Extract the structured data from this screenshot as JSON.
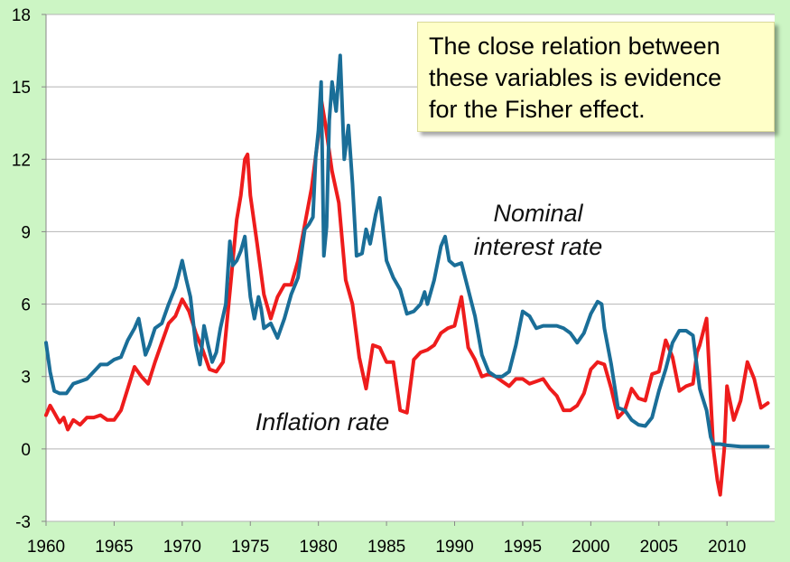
{
  "chart_data": {
    "type": "line",
    "title": "",
    "xlabel": "",
    "ylabel": "",
    "xlim": [
      1960,
      2013.5
    ],
    "ylim": [
      -3,
      18
    ],
    "y_ticks": [
      18,
      15,
      12,
      9,
      6,
      3,
      0,
      -3
    ],
    "x_ticks": [
      1960,
      1965,
      1970,
      1975,
      1980,
      1985,
      1990,
      1995,
      2000,
      2005,
      2010
    ],
    "grid": "horizontal",
    "background": "#ccf5c4",
    "plot_background": "#ffffff",
    "annotation": [
      "The close relation between",
      "these variables is evidence",
      "for the Fisher effect."
    ],
    "series": [
      {
        "label_lines": [
          "Nominal",
          "interest rate"
        ],
        "color": "#1a6e98",
        "points": [
          [
            1960.0,
            4.4
          ],
          [
            1960.3,
            3.2
          ],
          [
            1960.6,
            2.4
          ],
          [
            1961.0,
            2.3
          ],
          [
            1961.5,
            2.3
          ],
          [
            1962.0,
            2.7
          ],
          [
            1962.5,
            2.8
          ],
          [
            1963.0,
            2.9
          ],
          [
            1963.5,
            3.2
          ],
          [
            1964.0,
            3.5
          ],
          [
            1964.5,
            3.5
          ],
          [
            1965.0,
            3.7
          ],
          [
            1965.5,
            3.8
          ],
          [
            1966.0,
            4.5
          ],
          [
            1966.5,
            5.0
          ],
          [
            1966.8,
            5.4
          ],
          [
            1967.0,
            4.8
          ],
          [
            1967.3,
            3.9
          ],
          [
            1967.6,
            4.3
          ],
          [
            1968.0,
            5.0
          ],
          [
            1968.5,
            5.2
          ],
          [
            1969.0,
            6.0
          ],
          [
            1969.5,
            6.7
          ],
          [
            1970.0,
            7.8
          ],
          [
            1970.3,
            7.0
          ],
          [
            1970.6,
            6.3
          ],
          [
            1971.0,
            4.3
          ],
          [
            1971.3,
            3.5
          ],
          [
            1971.6,
            5.1
          ],
          [
            1971.9,
            4.3
          ],
          [
            1972.2,
            3.6
          ],
          [
            1972.5,
            4.0
          ],
          [
            1972.8,
            5.0
          ],
          [
            1973.2,
            6.0
          ],
          [
            1973.5,
            8.6
          ],
          [
            1973.7,
            7.6
          ],
          [
            1974.0,
            7.8
          ],
          [
            1974.3,
            8.2
          ],
          [
            1974.6,
            8.8
          ],
          [
            1974.8,
            7.5
          ],
          [
            1975.0,
            6.3
          ],
          [
            1975.3,
            5.4
          ],
          [
            1975.6,
            6.3
          ],
          [
            1975.8,
            5.8
          ],
          [
            1976.0,
            5.0
          ],
          [
            1976.5,
            5.2
          ],
          [
            1977.0,
            4.6
          ],
          [
            1977.5,
            5.4
          ],
          [
            1978.0,
            6.4
          ],
          [
            1978.5,
            7.1
          ],
          [
            1979.0,
            9.1
          ],
          [
            1979.3,
            9.3
          ],
          [
            1979.6,
            9.6
          ],
          [
            1979.8,
            12.1
          ],
          [
            1980.0,
            13.2
          ],
          [
            1980.2,
            15.2
          ],
          [
            1980.4,
            8.0
          ],
          [
            1980.6,
            9.2
          ],
          [
            1980.8,
            13.6
          ],
          [
            1981.0,
            15.2
          ],
          [
            1981.3,
            14.0
          ],
          [
            1981.6,
            16.3
          ],
          [
            1981.9,
            12.0
          ],
          [
            1982.2,
            13.4
          ],
          [
            1982.5,
            11.0
          ],
          [
            1982.8,
            8.0
          ],
          [
            1983.2,
            8.1
          ],
          [
            1983.5,
            9.1
          ],
          [
            1983.8,
            8.5
          ],
          [
            1984.2,
            9.7
          ],
          [
            1984.5,
            10.4
          ],
          [
            1984.8,
            8.8
          ],
          [
            1985.0,
            7.8
          ],
          [
            1985.5,
            7.1
          ],
          [
            1986.0,
            6.6
          ],
          [
            1986.5,
            5.6
          ],
          [
            1987.0,
            5.7
          ],
          [
            1987.5,
            6.0
          ],
          [
            1987.8,
            6.5
          ],
          [
            1988.0,
            6.0
          ],
          [
            1988.5,
            7.0
          ],
          [
            1989.0,
            8.4
          ],
          [
            1989.3,
            8.8
          ],
          [
            1989.6,
            7.8
          ],
          [
            1990.0,
            7.6
          ],
          [
            1990.5,
            7.7
          ],
          [
            1991.0,
            6.6
          ],
          [
            1991.5,
            5.5
          ],
          [
            1992.0,
            3.9
          ],
          [
            1992.5,
            3.2
          ],
          [
            1993.0,
            3.0
          ],
          [
            1993.5,
            3.0
          ],
          [
            1994.0,
            3.2
          ],
          [
            1994.5,
            4.3
          ],
          [
            1995.0,
            5.7
          ],
          [
            1995.5,
            5.5
          ],
          [
            1996.0,
            5.0
          ],
          [
            1996.5,
            5.1
          ],
          [
            1997.0,
            5.1
          ],
          [
            1997.5,
            5.1
          ],
          [
            1998.0,
            5.0
          ],
          [
            1998.5,
            4.8
          ],
          [
            1999.0,
            4.4
          ],
          [
            1999.5,
            4.8
          ],
          [
            2000.0,
            5.6
          ],
          [
            2000.5,
            6.1
          ],
          [
            2000.8,
            6.0
          ],
          [
            2001.0,
            5.0
          ],
          [
            2001.5,
            3.5
          ],
          [
            2002.0,
            1.7
          ],
          [
            2002.5,
            1.6
          ],
          [
            2003.0,
            1.2
          ],
          [
            2003.5,
            1.0
          ],
          [
            2004.0,
            0.95
          ],
          [
            2004.5,
            1.3
          ],
          [
            2005.0,
            2.4
          ],
          [
            2005.5,
            3.3
          ],
          [
            2006.0,
            4.4
          ],
          [
            2006.5,
            4.9
          ],
          [
            2007.0,
            4.9
          ],
          [
            2007.5,
            4.7
          ],
          [
            2008.0,
            2.5
          ],
          [
            2008.5,
            1.6
          ],
          [
            2008.8,
            0.5
          ],
          [
            2009.0,
            0.2
          ],
          [
            2009.5,
            0.2
          ],
          [
            2010.0,
            0.15
          ],
          [
            2011.0,
            0.1
          ],
          [
            2012.0,
            0.1
          ],
          [
            2013.0,
            0.1
          ]
        ]
      },
      {
        "label_lines": [
          "Inflation rate"
        ],
        "color": "#ee1c1c",
        "points": [
          [
            1960.0,
            1.4
          ],
          [
            1960.3,
            1.8
          ],
          [
            1960.6,
            1.5
          ],
          [
            1961.0,
            1.1
          ],
          [
            1961.3,
            1.3
          ],
          [
            1961.6,
            0.8
          ],
          [
            1962.0,
            1.2
          ],
          [
            1962.5,
            1.0
          ],
          [
            1963.0,
            1.3
          ],
          [
            1963.5,
            1.3
          ],
          [
            1964.0,
            1.4
          ],
          [
            1964.5,
            1.2
          ],
          [
            1965.0,
            1.2
          ],
          [
            1965.5,
            1.6
          ],
          [
            1966.0,
            2.5
          ],
          [
            1966.5,
            3.4
          ],
          [
            1967.0,
            3.0
          ],
          [
            1967.5,
            2.7
          ],
          [
            1968.0,
            3.6
          ],
          [
            1968.5,
            4.4
          ],
          [
            1969.0,
            5.2
          ],
          [
            1969.5,
            5.5
          ],
          [
            1970.0,
            6.2
          ],
          [
            1970.5,
            5.7
          ],
          [
            1971.0,
            4.8
          ],
          [
            1971.5,
            4.1
          ],
          [
            1972.0,
            3.3
          ],
          [
            1972.5,
            3.2
          ],
          [
            1973.0,
            3.6
          ],
          [
            1973.5,
            6.5
          ],
          [
            1974.0,
            9.5
          ],
          [
            1974.3,
            10.5
          ],
          [
            1974.6,
            12.0
          ],
          [
            1974.8,
            12.2
          ],
          [
            1975.0,
            10.5
          ],
          [
            1975.5,
            8.5
          ],
          [
            1976.0,
            6.4
          ],
          [
            1976.5,
            5.4
          ],
          [
            1977.0,
            6.3
          ],
          [
            1977.5,
            6.8
          ],
          [
            1978.0,
            6.8
          ],
          [
            1978.5,
            7.8
          ],
          [
            1979.0,
            9.3
          ],
          [
            1979.5,
            10.8
          ],
          [
            1980.0,
            13.0
          ],
          [
            1980.2,
            14.5
          ],
          [
            1980.5,
            13.5
          ],
          [
            1981.0,
            11.5
          ],
          [
            1981.5,
            10.2
          ],
          [
            1982.0,
            7.0
          ],
          [
            1982.5,
            6.0
          ],
          [
            1983.0,
            3.8
          ],
          [
            1983.5,
            2.5
          ],
          [
            1984.0,
            4.3
          ],
          [
            1984.5,
            4.2
          ],
          [
            1985.0,
            3.6
          ],
          [
            1985.5,
            3.6
          ],
          [
            1986.0,
            1.6
          ],
          [
            1986.5,
            1.5
          ],
          [
            1987.0,
            3.7
          ],
          [
            1987.5,
            4.0
          ],
          [
            1988.0,
            4.1
          ],
          [
            1988.5,
            4.3
          ],
          [
            1989.0,
            4.8
          ],
          [
            1989.5,
            5.0
          ],
          [
            1990.0,
            5.1
          ],
          [
            1990.5,
            6.3
          ],
          [
            1991.0,
            4.2
          ],
          [
            1991.5,
            3.7
          ],
          [
            1992.0,
            3.0
          ],
          [
            1992.5,
            3.1
          ],
          [
            1993.0,
            3.0
          ],
          [
            1993.5,
            2.8
          ],
          [
            1994.0,
            2.6
          ],
          [
            1994.5,
            2.9
          ],
          [
            1995.0,
            2.9
          ],
          [
            1995.5,
            2.7
          ],
          [
            1996.0,
            2.8
          ],
          [
            1996.5,
            2.9
          ],
          [
            1997.0,
            2.5
          ],
          [
            1997.5,
            2.2
          ],
          [
            1998.0,
            1.6
          ],
          [
            1998.5,
            1.6
          ],
          [
            1999.0,
            1.8
          ],
          [
            1999.5,
            2.3
          ],
          [
            2000.0,
            3.3
          ],
          [
            2000.5,
            3.6
          ],
          [
            2001.0,
            3.5
          ],
          [
            2001.5,
            2.5
          ],
          [
            2002.0,
            1.3
          ],
          [
            2002.5,
            1.6
          ],
          [
            2003.0,
            2.5
          ],
          [
            2003.5,
            2.1
          ],
          [
            2004.0,
            2.0
          ],
          [
            2004.5,
            3.1
          ],
          [
            2005.0,
            3.2
          ],
          [
            2005.5,
            4.5
          ],
          [
            2006.0,
            3.8
          ],
          [
            2006.5,
            2.4
          ],
          [
            2007.0,
            2.6
          ],
          [
            2007.5,
            2.7
          ],
          [
            2007.8,
            4.0
          ],
          [
            2008.0,
            4.3
          ],
          [
            2008.5,
            5.4
          ],
          [
            2009.0,
            0.0
          ],
          [
            2009.3,
            -1.3
          ],
          [
            2009.5,
            -1.9
          ],
          [
            2009.8,
            0.0
          ],
          [
            2010.0,
            2.6
          ],
          [
            2010.5,
            1.2
          ],
          [
            2011.0,
            2.0
          ],
          [
            2011.5,
            3.6
          ],
          [
            2012.0,
            2.9
          ],
          [
            2012.5,
            1.7
          ],
          [
            2013.0,
            1.9
          ]
        ]
      }
    ]
  }
}
